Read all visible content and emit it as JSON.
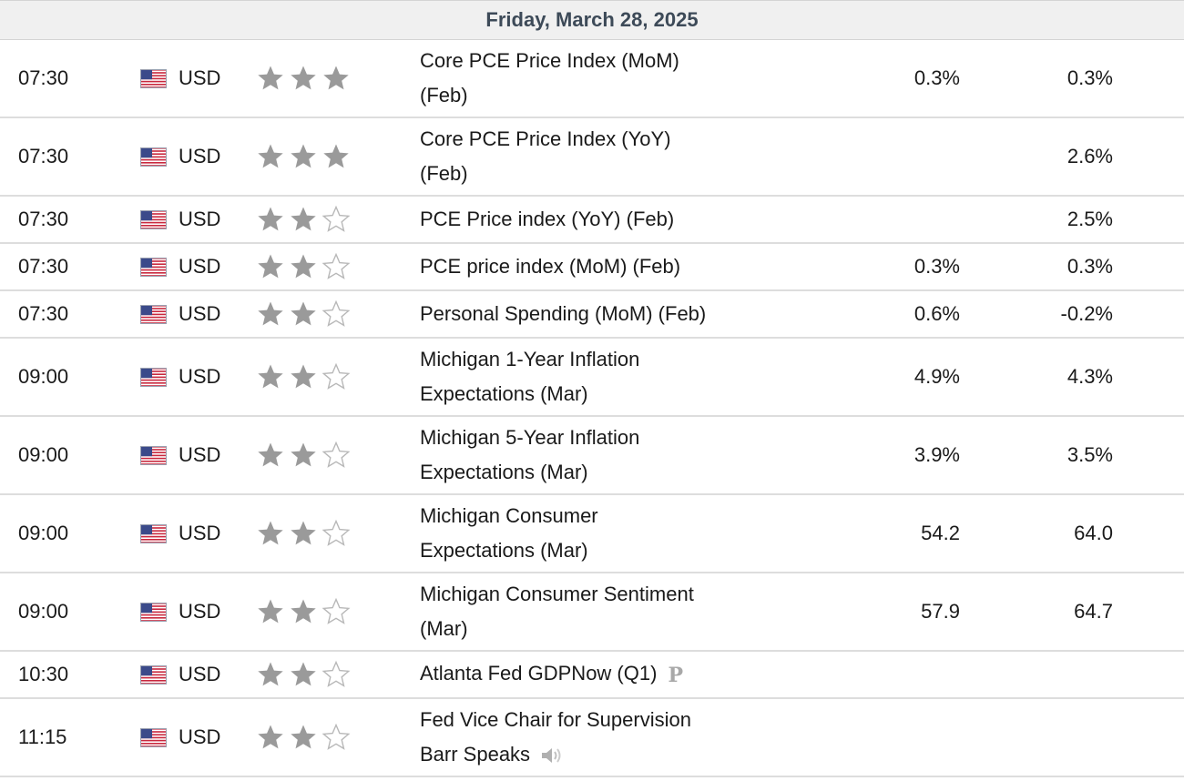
{
  "date_header": "Friday, March 28, 2025",
  "colors": {
    "header_bg": "#f0f0f0",
    "header_text": "#3d4a58",
    "star_filled": "#9a9a9a",
    "star_empty": "#b8b8b8",
    "divider": "#dddddd"
  },
  "rows": [
    {
      "time": "07:30",
      "currency": "USD",
      "importance": 3,
      "event_line1": "Core PCE Price Index (MoM)",
      "event_line2": "(Feb)",
      "actual": "0.3%",
      "previous": "0.3%",
      "tall": true
    },
    {
      "time": "07:30",
      "currency": "USD",
      "importance": 3,
      "event_line1": "Core PCE Price Index (YoY)",
      "event_line2": "(Feb)",
      "actual": "",
      "previous": "2.6%",
      "tall": true
    },
    {
      "time": "07:30",
      "currency": "USD",
      "importance": 2,
      "event_line1": "PCE Price index (YoY) (Feb)",
      "event_line2": "",
      "actual": "",
      "previous": "2.5%",
      "tall": false
    },
    {
      "time": "07:30",
      "currency": "USD",
      "importance": 2,
      "event_line1": "PCE price index (MoM) (Feb)",
      "event_line2": "",
      "actual": "0.3%",
      "previous": "0.3%",
      "tall": false
    },
    {
      "time": "07:30",
      "currency": "USD",
      "importance": 2,
      "event_line1": "Personal Spending (MoM) (Feb)",
      "event_line2": "",
      "actual": "0.6%",
      "previous": "-0.2%",
      "tall": false
    },
    {
      "time": "09:00",
      "currency": "USD",
      "importance": 2,
      "event_line1": "Michigan 1-Year Inflation",
      "event_line2": "Expectations (Mar)",
      "actual": "4.9%",
      "previous": "4.3%",
      "tall": true
    },
    {
      "time": "09:00",
      "currency": "USD",
      "importance": 2,
      "event_line1": "Michigan 5-Year Inflation",
      "event_line2": "Expectations (Mar)",
      "actual": "3.9%",
      "previous": "3.5%",
      "tall": true
    },
    {
      "time": "09:00",
      "currency": "USD",
      "importance": 2,
      "event_line1": "Michigan Consumer",
      "event_line2": "Expectations (Mar)",
      "actual": "54.2",
      "previous": "64.0",
      "tall": true
    },
    {
      "time": "09:00",
      "currency": "USD",
      "importance": 2,
      "event_line1": "Michigan Consumer Sentiment",
      "event_line2": "(Mar)",
      "actual": "57.9",
      "previous": "64.7",
      "tall": true
    },
    {
      "time": "10:30",
      "currency": "USD",
      "importance": 2,
      "event_line1": "Atlanta Fed GDPNow (Q1)",
      "event_line2": "",
      "actual": "",
      "previous": "",
      "tall": false,
      "badge": "P"
    },
    {
      "time": "11:15",
      "currency": "USD",
      "importance": 2,
      "event_line1": "Fed Vice Chair for Supervision",
      "event_line2": "Barr Speaks",
      "actual": "",
      "previous": "",
      "tall": true,
      "icon": "speaker-icon"
    }
  ]
}
